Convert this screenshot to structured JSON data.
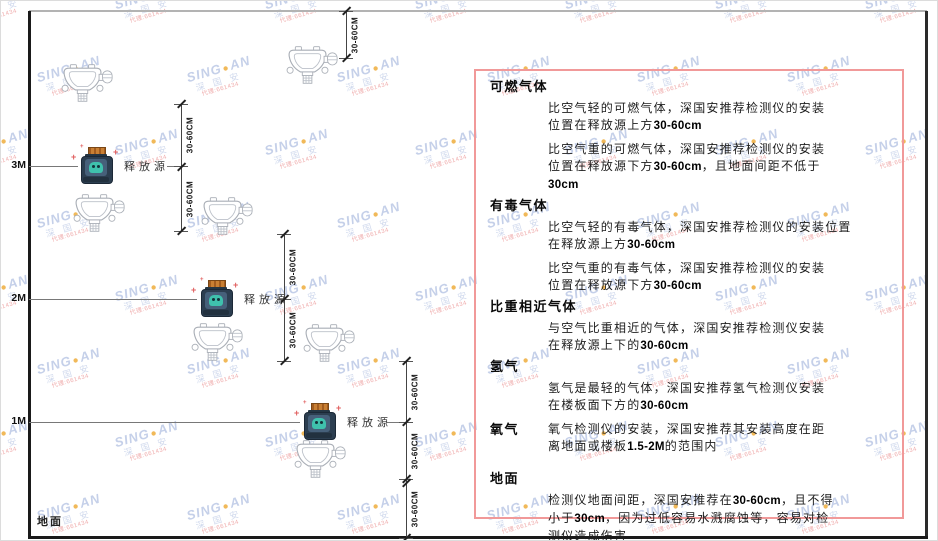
{
  "watermark": {
    "brand_left": "SING",
    "dot": "●",
    "brand_right": "AN",
    "company": "深 国 安",
    "subtext": "代理:661434"
  },
  "diagram": {
    "scale": [
      "3M",
      "2M",
      "1M"
    ],
    "ground": "地面",
    "release_source": "释放源",
    "dimension": "30-60CM"
  },
  "panel": {
    "sections": [
      {
        "heading": "可燃气体",
        "paragraphs": [
          [
            [
              {
                "t": "比空气轻的可燃气体，深国安推荐检测仪的安装"
              }
            ],
            [
              {
                "t": "位置在释放源上方"
              },
              {
                "t": "30-60cm",
                "b": true
              }
            ]
          ],
          [
            [
              {
                "t": "比空气重的可燃气体，深国安推荐检测仪的安装"
              }
            ],
            [
              {
                "t": "位置在释放源下方"
              },
              {
                "t": "30-60cm",
                "b": true
              },
              {
                "t": "，且地面间距不低于"
              }
            ],
            [
              {
                "t": "30cm",
                "b": true
              }
            ]
          ]
        ]
      },
      {
        "heading": "有毒气体",
        "paragraphs": [
          [
            [
              {
                "t": "比空气轻的有毒气体，深国安推荐检测仪的安装位置"
              }
            ],
            [
              {
                "t": "在释放源上方"
              },
              {
                "t": "30-60cm",
                "b": true
              }
            ]
          ],
          [
            [
              {
                "t": "比空气重的有毒气体，深国安推荐检测仪的安装"
              }
            ],
            [
              {
                "t": "位置在释放源下方"
              },
              {
                "t": "30-60cm",
                "b": true
              }
            ]
          ]
        ]
      },
      {
        "heading": "比重相近气体",
        "paragraphs": [
          [
            [
              {
                "t": "与空气比重相近的气体，深国安推荐检测仪安装"
              }
            ],
            [
              {
                "t": "在释放源上下的"
              },
              {
                "t": "30-60cm",
                "b": true
              }
            ]
          ]
        ]
      },
      {
        "heading": "氢气",
        "paragraphs": [
          [
            [
              {
                "t": "氢气是最轻的气体，深国安推荐氢气检测仪安装"
              }
            ],
            [
              {
                "t": "在楼板面下方的"
              },
              {
                "t": "30-60cm",
                "b": true
              }
            ]
          ]
        ]
      },
      {
        "heading": "氧气",
        "inline": true,
        "paragraphs": [
          [
            [
              {
                "t": "氧气检测仪的安装，深国安推荐其安装高度在距"
              }
            ],
            [
              {
                "t": "离地面或楼板"
              },
              {
                "t": "1.5-2M",
                "b": true
              },
              {
                "t": "的范围内"
              }
            ]
          ]
        ]
      },
      {
        "heading": "地面",
        "gap": "large",
        "paragraphs": [
          [
            [
              {
                "t": "检测仪地面间距，深国安推荐在"
              },
              {
                "t": "30-60cm",
                "b": true
              },
              {
                "t": "，且不得"
              }
            ],
            [
              {
                "t": "小于"
              },
              {
                "t": "30cm",
                "b": true
              },
              {
                "t": "，因为过低容易水溅腐蚀等，容易对检"
              }
            ],
            [
              {
                "t": "测仪造成伤害"
              }
            ]
          ]
        ]
      }
    ]
  },
  "colors": {
    "panel_border": "#f19999",
    "source_body": "#2c3e50",
    "source_cap": "#b96e28",
    "source_blob": "#3fc1ad",
    "detector_stroke": "#a9aeb6",
    "watermark_blue": "#96aad7",
    "watermark_orange": "#eea830"
  }
}
